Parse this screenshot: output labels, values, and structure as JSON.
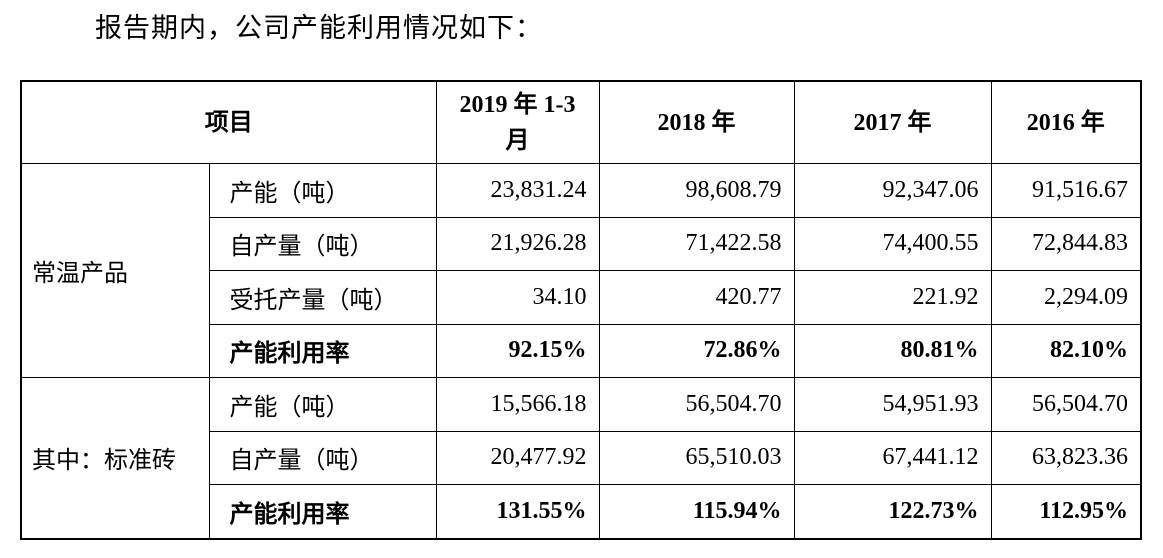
{
  "intro": "报告期内，公司产能利用情况如下：",
  "table": {
    "header": [
      "项目",
      "2019 年 1-3 月",
      "2018 年",
      "2017 年",
      "2016 年"
    ],
    "groups": [
      {
        "label": "常温产品",
        "rows": [
          [
            "产能（吨）",
            "23,831.24",
            "98,608.79",
            "92,347.06",
            "91,516.67"
          ],
          [
            "自产量（吨）",
            "21,926.28",
            "71,422.58",
            "74,400.55",
            "72,844.83"
          ],
          [
            "受托产量（吨）",
            "34.10",
            "420.77",
            "221.92",
            "2,294.09"
          ],
          [
            "产能利用率",
            "92.15%",
            "72.86%",
            "80.81%",
            "82.10%"
          ]
        ]
      },
      {
        "label": "其中：标准砖",
        "rows": [
          [
            "产能（吨）",
            "15,566.18",
            "56,504.70",
            "54,951.93",
            "56,504.70"
          ],
          [
            "自产量（吨）",
            "20,477.92",
            "65,510.03",
            "67,441.12",
            "63,823.36"
          ],
          [
            "产能利用率",
            "131.55%",
            "115.94%",
            "122.73%",
            "112.95%"
          ]
        ]
      }
    ]
  }
}
